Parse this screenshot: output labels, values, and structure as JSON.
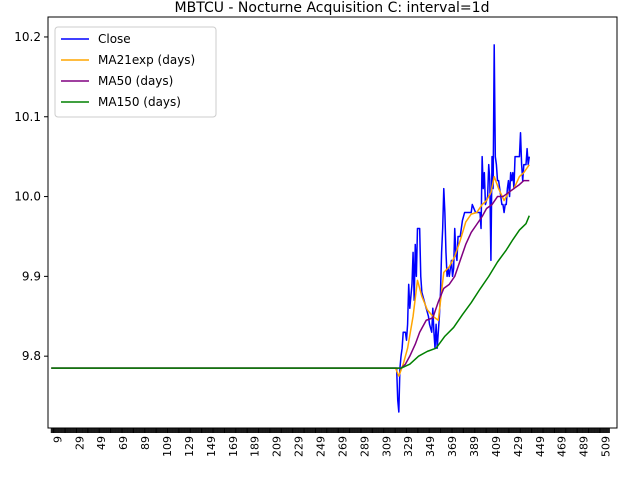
{
  "chart_data": {
    "type": "line",
    "title": "MBTCU - Nocturne Acquisition C: interval=1d",
    "xlabel": "",
    "ylabel": "",
    "xlim": [
      0,
      519
    ],
    "ylim": [
      9.71,
      10.225
    ],
    "x_ticks": [
      9,
      29,
      49,
      69,
      89,
      109,
      129,
      149,
      169,
      189,
      209,
      229,
      249,
      269,
      289,
      309,
      329,
      349,
      369,
      389,
      409,
      429,
      449,
      469,
      489,
      509
    ],
    "y_ticks": [
      9.8,
      9.9,
      10.0,
      10.1,
      10.2
    ],
    "y_tick_labels": [
      "9.8",
      "9.9",
      "10.0",
      "10.1",
      "10.2"
    ],
    "legend_position": "top-left",
    "grid": false,
    "series": [
      {
        "name": "Close",
        "color": "#0000ff",
        "points": [
          [
            3,
            9.785
          ],
          [
            318,
            9.785
          ],
          [
            319,
            9.745
          ],
          [
            320,
            9.73
          ],
          [
            321,
            9.785
          ],
          [
            322,
            9.8
          ],
          [
            323,
            9.81
          ],
          [
            324,
            9.83
          ],
          [
            326,
            9.83
          ],
          [
            327,
            9.82
          ],
          [
            328,
            9.84
          ],
          [
            329,
            9.89
          ],
          [
            330,
            9.86
          ],
          [
            332,
            9.89
          ],
          [
            333,
            9.93
          ],
          [
            334,
            9.87
          ],
          [
            335,
            9.94
          ],
          [
            336,
            9.9
          ],
          [
            337,
            9.96
          ],
          [
            339,
            9.96
          ],
          [
            340,
            9.9
          ],
          [
            341,
            9.88
          ],
          [
            343,
            9.87
          ],
          [
            345,
            9.86
          ],
          [
            347,
            9.85
          ],
          [
            348,
            9.84
          ],
          [
            350,
            9.83
          ],
          [
            351,
            9.86
          ],
          [
            352,
            9.83
          ],
          [
            353,
            9.81
          ],
          [
            354,
            9.84
          ],
          [
            355,
            9.81
          ],
          [
            357,
            9.85
          ],
          [
            358,
            9.88
          ],
          [
            359,
            9.93
          ],
          [
            360,
            9.96
          ],
          [
            361,
            10.01
          ],
          [
            362,
            9.98
          ],
          [
            363,
            9.93
          ],
          [
            364,
            9.9
          ],
          [
            365,
            9.91
          ],
          [
            366,
            9.9
          ],
          [
            368,
            9.92
          ],
          [
            369,
            9.9
          ],
          [
            370,
            9.91
          ],
          [
            371,
            9.96
          ],
          [
            372,
            9.93
          ],
          [
            373,
            9.92
          ],
          [
            374,
            9.95
          ],
          [
            376,
            9.95
          ],
          [
            378,
            9.97
          ],
          [
            380,
            9.98
          ],
          [
            384,
            9.98
          ],
          [
            386,
            9.98
          ],
          [
            387,
            9.99
          ],
          [
            390,
            9.98
          ],
          [
            394,
            9.98
          ],
          [
            395,
            9.96
          ],
          [
            396,
            10.05
          ],
          [
            397,
            10.01
          ],
          [
            398,
            10.03
          ],
          [
            399,
            9.99
          ],
          [
            401,
            10.0
          ],
          [
            402,
            10.04
          ],
          [
            403,
            10.02
          ],
          [
            404,
            9.92
          ],
          [
            405,
            10.05
          ],
          [
            406,
            10.01
          ],
          [
            407,
            10.19
          ],
          [
            408,
            10.05
          ],
          [
            409,
            10.04
          ],
          [
            410,
            10.02
          ],
          [
            411,
            10.02
          ],
          [
            413,
            10.0
          ],
          [
            414,
            9.99
          ],
          [
            415,
            9.99
          ],
          [
            416,
            9.98
          ],
          [
            417,
            9.99
          ],
          [
            418,
            9.99
          ],
          [
            419,
            10.01
          ],
          [
            420,
            10.02
          ],
          [
            421,
            10.0
          ],
          [
            422,
            10.03
          ],
          [
            423,
            10.02
          ],
          [
            424,
            10.03
          ],
          [
            425,
            10.01
          ],
          [
            426,
            10.05
          ],
          [
            430,
            10.05
          ],
          [
            431,
            10.08
          ],
          [
            432,
            10.04
          ],
          [
            433,
            10.02
          ],
          [
            434,
            10.04
          ],
          [
            436,
            10.04
          ],
          [
            437,
            10.06
          ],
          [
            438,
            10.04
          ],
          [
            439,
            10.05
          ]
        ]
      },
      {
        "name": "MA21exp (days)",
        "color": "#ffa500",
        "points": [
          [
            3,
            9.785
          ],
          [
            317,
            9.785
          ],
          [
            320,
            9.775
          ],
          [
            324,
            9.79
          ],
          [
            328,
            9.81
          ],
          [
            333,
            9.85
          ],
          [
            337,
            9.895
          ],
          [
            341,
            9.875
          ],
          [
            346,
            9.858
          ],
          [
            351,
            9.85
          ],
          [
            356,
            9.845
          ],
          [
            361,
            9.905
          ],
          [
            366,
            9.912
          ],
          [
            371,
            9.925
          ],
          [
            376,
            9.945
          ],
          [
            381,
            9.968
          ],
          [
            386,
            9.978
          ],
          [
            391,
            9.98
          ],
          [
            396,
            9.99
          ],
          [
            400,
            9.995
          ],
          [
            404,
            10.005
          ],
          [
            407,
            10.025
          ],
          [
            411,
            10.01
          ],
          [
            416,
            9.995
          ],
          [
            420,
            10.005
          ],
          [
            425,
            10.01
          ],
          [
            430,
            10.025
          ],
          [
            434,
            10.03
          ],
          [
            439,
            10.04
          ]
        ]
      },
      {
        "name": "MA50 (days)",
        "color": "#800080",
        "points": [
          [
            3,
            9.785
          ],
          [
            318,
            9.785
          ],
          [
            322,
            9.785
          ],
          [
            326,
            9.79
          ],
          [
            330,
            9.8
          ],
          [
            335,
            9.815
          ],
          [
            339,
            9.83
          ],
          [
            345,
            9.845
          ],
          [
            351,
            9.848
          ],
          [
            356,
            9.868
          ],
          [
            361,
            9.885
          ],
          [
            366,
            9.89
          ],
          [
            371,
            9.9
          ],
          [
            376,
            9.92
          ],
          [
            381,
            9.94
          ],
          [
            386,
            9.955
          ],
          [
            391,
            9.965
          ],
          [
            396,
            9.975
          ],
          [
            400,
            9.985
          ],
          [
            405,
            9.99
          ],
          [
            410,
            10.0
          ],
          [
            415,
            10.0
          ],
          [
            420,
            10.005
          ],
          [
            425,
            10.01
          ],
          [
            430,
            10.015
          ],
          [
            434,
            10.02
          ],
          [
            439,
            10.02
          ]
        ]
      },
      {
        "name": "MA150 (days)",
        "color": "#008000",
        "points": [
          [
            3,
            9.785
          ],
          [
            322,
            9.785
          ],
          [
            330,
            9.79
          ],
          [
            338,
            9.8
          ],
          [
            346,
            9.806
          ],
          [
            354,
            9.81
          ],
          [
            362,
            9.825
          ],
          [
            370,
            9.836
          ],
          [
            378,
            9.852
          ],
          [
            386,
            9.867
          ],
          [
            394,
            9.884
          ],
          [
            402,
            9.9
          ],
          [
            410,
            9.918
          ],
          [
            418,
            9.933
          ],
          [
            424,
            9.946
          ],
          [
            430,
            9.958
          ],
          [
            436,
            9.966
          ],
          [
            439,
            9.976
          ]
        ]
      }
    ]
  }
}
